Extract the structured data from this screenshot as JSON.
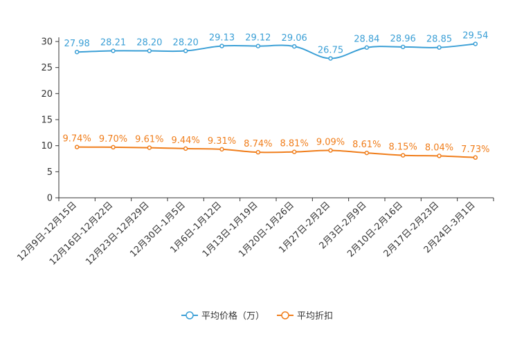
{
  "chart_data": {
    "type": "line",
    "title": "",
    "xlabel": "",
    "ylabel": "",
    "ylim": [
      0,
      30
    ],
    "yticks": [
      0,
      5,
      10,
      15,
      20,
      25,
      30
    ],
    "grid": false,
    "legend_position": "bottom-center",
    "categories": [
      "12月9日-12月15日",
      "12月16日-12月22日",
      "12月23日-12月29日",
      "12月30日-1月5日",
      "1月6日-1月12日",
      "1月13日-1月19日",
      "1月20日-1月26日",
      "1月27日-2月2日",
      "2月3日-2月9日",
      "2月10日-2月16日",
      "2月17日-2月23日",
      "2月24日-3月1日"
    ],
    "series": [
      {
        "name": "平均价格（万）",
        "color": "#3a9fd6",
        "values": [
          27.98,
          28.21,
          28.2,
          28.2,
          29.13,
          29.12,
          29.06,
          26.75,
          28.84,
          28.96,
          28.85,
          29.54
        ],
        "labels": [
          "27.98",
          "28.21",
          "28.20",
          "28.20",
          "29.13",
          "29.12",
          "29.06",
          "26.75",
          "28.84",
          "28.96",
          "28.85",
          "29.54"
        ]
      },
      {
        "name": "平均折扣",
        "color": "#f07d1a",
        "values": [
          9.74,
          9.7,
          9.61,
          9.44,
          9.31,
          8.74,
          8.81,
          9.09,
          8.61,
          8.15,
          8.04,
          7.73
        ],
        "labels": [
          "9.74%",
          "9.70%",
          "9.61%",
          "9.44%",
          "9.31%",
          "8.74%",
          "8.81%",
          "9.09%",
          "8.61%",
          "8.15%",
          "8.04%",
          "7.73%"
        ]
      }
    ]
  }
}
